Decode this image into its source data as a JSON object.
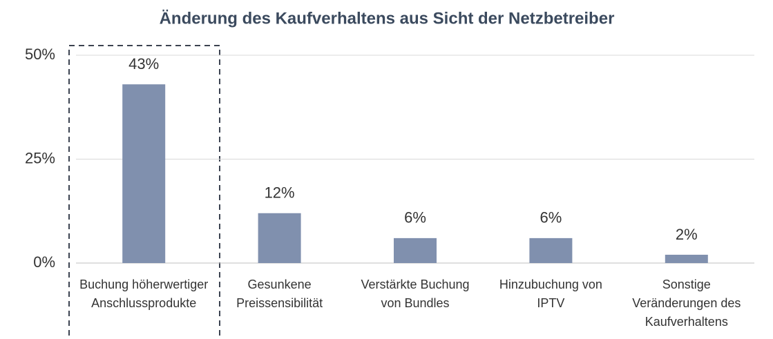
{
  "chart_data": {
    "type": "bar",
    "title": "Änderung des Kaufverhaltens aus Sicht der Netzbetreiber",
    "categories": [
      "Buchung höherwertiger Anschlussprodukte",
      "Gesunkene Preissensibilität",
      "Verstärkte Buchung von Bundles",
      "Hinzubuchung von IPTV",
      "Sonstige Veränderungen des Kaufverhaltens"
    ],
    "values": [
      43,
      12,
      6,
      6,
      2
    ],
    "value_labels": [
      "43%",
      "12%",
      "6%",
      "6%",
      "2%"
    ],
    "color": "#8090ae",
    "ylim": [
      0,
      50
    ],
    "yticks": [
      {
        "value": 0,
        "label": "0%"
      },
      {
        "value": 25,
        "label": "25%"
      },
      {
        "value": 50,
        "label": "50%"
      }
    ],
    "grid": true
  }
}
